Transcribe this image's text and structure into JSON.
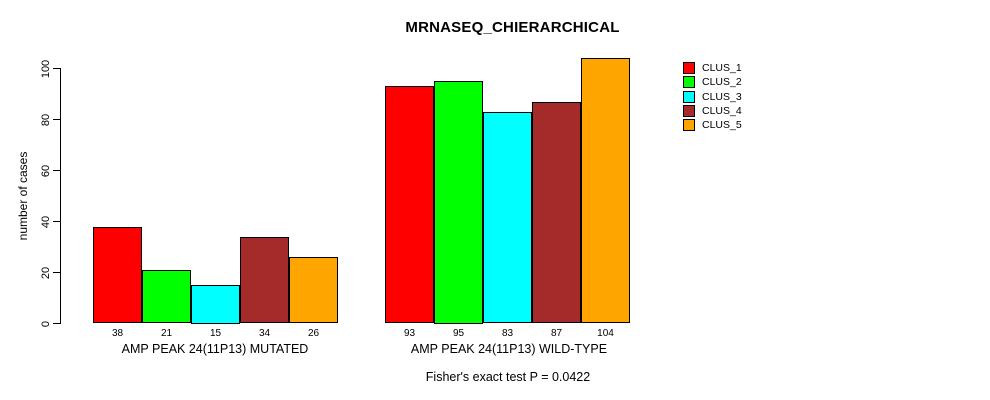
{
  "chart_data": {
    "type": "bar",
    "title": "MRNASEQ_CHIERARCHICAL",
    "xlabel": "",
    "ylabel": "number of cases",
    "ylim": [
      0,
      100
    ],
    "yticks": [
      0,
      20,
      40,
      60,
      80,
      100
    ],
    "grid": false,
    "background": "#ffffff",
    "bar_border_color": "#000000",
    "categories": [
      "CLUS_1",
      "CLUS_2",
      "CLUS_3",
      "CLUS_4",
      "CLUS_5"
    ],
    "groups": [
      {
        "label": "AMP PEAK 24(11P13) MUTATED",
        "values": [
          38,
          21,
          15,
          34,
          26
        ]
      },
      {
        "label": "AMP PEAK 24(11P13) WILD-TYPE",
        "values": [
          93,
          95,
          83,
          87,
          104
        ]
      }
    ],
    "legend": {
      "position": "right",
      "entries": [
        {
          "label": "CLUS_1",
          "color": "#FF0000"
        },
        {
          "label": "CLUS_2",
          "color": "#00FF00"
        },
        {
          "label": "CLUS_3",
          "color": "#00FFFF"
        },
        {
          "label": "CLUS_4",
          "color": "#A52A2A"
        },
        {
          "label": "CLUS_5",
          "color": "#FFA500"
        }
      ]
    },
    "annotation": "Fisher's exact test P = 0.0422"
  }
}
